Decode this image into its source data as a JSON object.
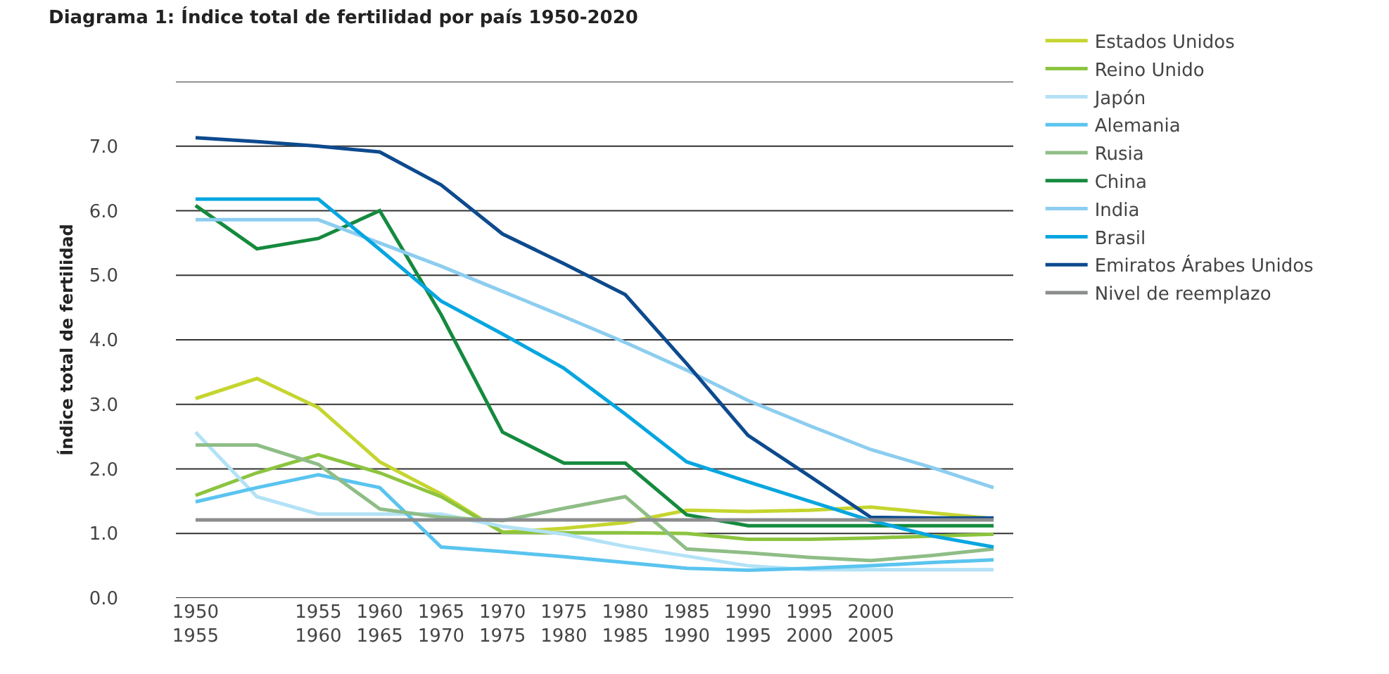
{
  "chart_data": {
    "type": "line",
    "title": "Diagrama 1: Índice total de fertilidad por país 1950-2020",
    "ylabel": "Índice total de fertilidad",
    "categories": [
      "1950\n1955",
      null,
      "1955\n1960",
      "1960\n1965",
      "1965\n1970",
      "1970\n1975",
      "1975\n1980",
      "1980\n1985",
      "1985\n1990",
      "1990\n1995",
      "1995\n2000",
      "2000\n2005",
      null,
      null
    ],
    "ylim": [
      0,
      8
    ],
    "yticks": [
      {
        "value": 0,
        "label": "0.0"
      },
      {
        "value": 1,
        "label": "1.0"
      },
      {
        "value": 2,
        "label": "2.0"
      },
      {
        "value": 3,
        "label": "3.0"
      },
      {
        "value": 4,
        "label": "4.0"
      },
      {
        "value": 5,
        "label": "5.0"
      },
      {
        "value": 6,
        "label": "6.0"
      },
      {
        "value": 7,
        "label": "7.0"
      },
      {
        "value": 8,
        "label": null
      }
    ],
    "grid": "y",
    "legend": "right",
    "marker": "none",
    "line_style": "solid",
    "series": [
      {
        "name": "Estados Unidos",
        "color": "#c5d52f",
        "values": [
          3.09,
          3.4,
          2.95,
          2.11,
          1.61,
          1.02,
          1.08,
          1.17,
          1.36,
          1.34,
          1.36,
          1.41,
          1.32,
          1.23
        ]
      },
      {
        "name": "Reino Unido",
        "color": "#8cc43f",
        "values": [
          1.59,
          1.94,
          2.22,
          1.94,
          1.57,
          1.02,
          1.01,
          1.01,
          1.0,
          0.91,
          0.91,
          0.93,
          0.96,
          0.99
        ]
      },
      {
        "name": "Japón",
        "color": "#b3e2f6",
        "values": [
          2.57,
          1.57,
          1.3,
          1.3,
          1.3,
          1.11,
          0.99,
          0.8,
          0.65,
          0.5,
          0.44,
          0.44,
          0.44,
          0.44
        ]
      },
      {
        "name": "Alemania",
        "color": "#5ac4ef",
        "values": [
          1.49,
          1.71,
          1.91,
          1.71,
          0.79,
          0.72,
          0.64,
          0.55,
          0.46,
          0.43,
          0.46,
          0.5,
          0.55,
          0.59
        ]
      },
      {
        "name": "Rusia",
        "color": "#8fbd86",
        "values": [
          2.37,
          2.37,
          2.07,
          1.38,
          1.25,
          1.2,
          1.39,
          1.57,
          0.76,
          0.7,
          0.63,
          0.58,
          0.66,
          0.76
        ]
      },
      {
        "name": "China",
        "color": "#158a3e",
        "values": [
          6.08,
          5.41,
          5.57,
          6.0,
          4.39,
          2.57,
          2.09,
          2.09,
          1.29,
          1.12,
          1.12,
          1.12,
          1.12,
          1.12
        ]
      },
      {
        "name": "India",
        "color": "#8ccdf0",
        "values": [
          5.86,
          5.86,
          5.86,
          5.5,
          5.14,
          4.75,
          4.36,
          3.96,
          3.53,
          3.06,
          2.67,
          2.3,
          2.02,
          1.71
        ]
      },
      {
        "name": "Brasil",
        "color": "#06a6e0",
        "values": [
          6.18,
          6.18,
          6.18,
          5.4,
          4.6,
          4.09,
          3.56,
          2.85,
          2.11,
          1.8,
          1.5,
          1.2,
          0.96,
          0.79
        ]
      },
      {
        "name": "Emiratos Árabes Unidos",
        "color": "#0d4a8e",
        "values": [
          7.13,
          7.07,
          7.0,
          6.91,
          6.4,
          5.64,
          5.18,
          4.7,
          3.63,
          2.52,
          1.89,
          1.25,
          1.24,
          1.24
        ]
      },
      {
        "name": "Nivel de reemplazo",
        "color": "#8a8c8e",
        "values": [
          1.21,
          1.21,
          1.21,
          1.21,
          1.21,
          1.21,
          1.21,
          1.21,
          1.21,
          1.21,
          1.21,
          1.21,
          1.21,
          1.21
        ]
      }
    ]
  }
}
